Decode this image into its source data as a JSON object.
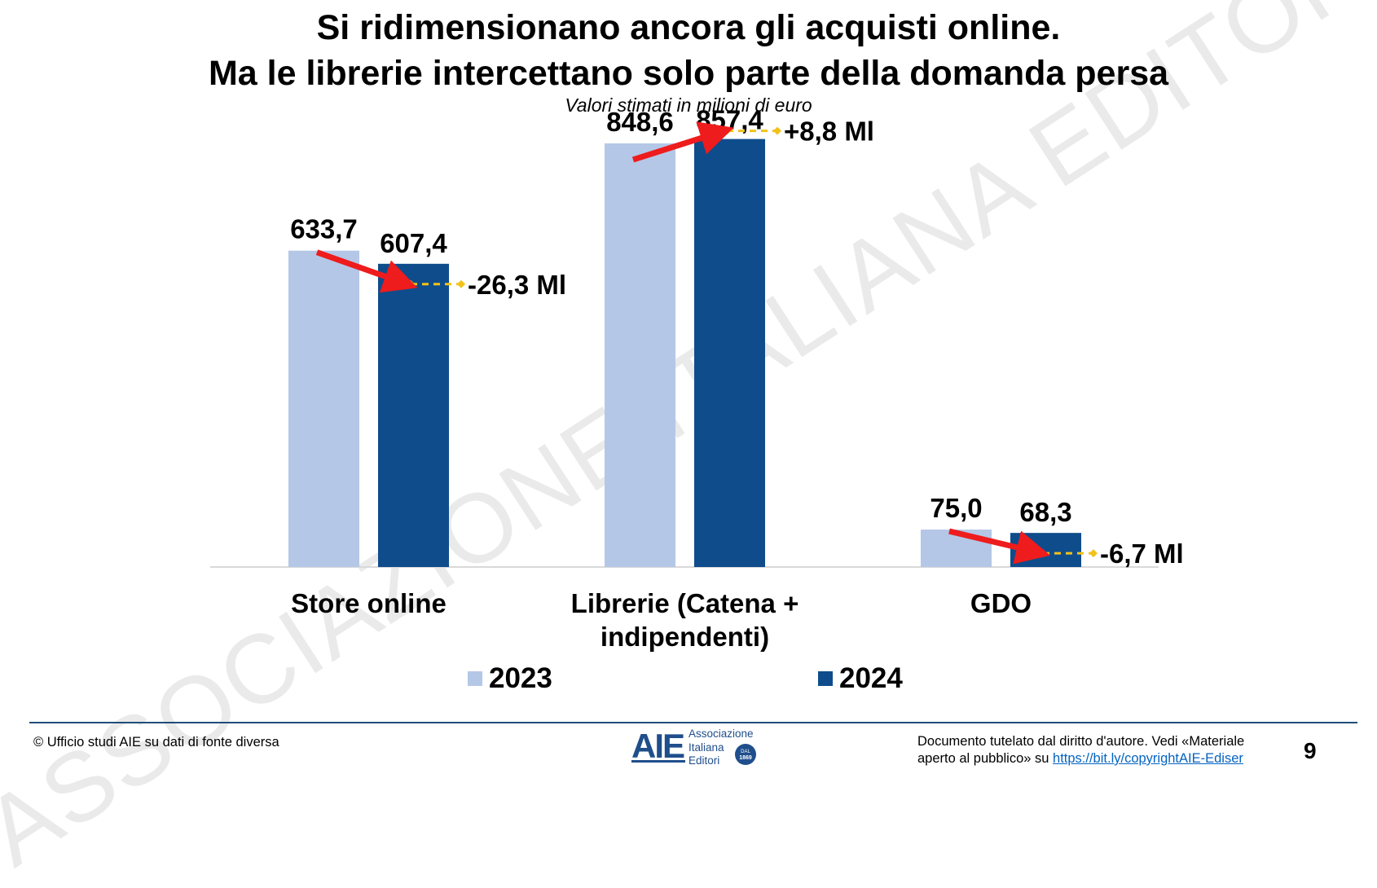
{
  "title_line1": "Si ridimensionano ancora gli acquisti online.",
  "title_line2": "Ma le librerie intercettano solo parte della domanda persa",
  "subtitle": "Valori stimati in milioni di euro",
  "watermark": "ASSOCIAZIONE ITALIANA EDITORI",
  "chart_data": {
    "type": "bar",
    "categories": [
      [
        "Store online"
      ],
      [
        "Librerie (Catena +",
        "indipendenti)"
      ],
      [
        "GDO"
      ]
    ],
    "series": [
      {
        "name": "2023",
        "values": [
          633.7,
          848.6,
          75.0
        ],
        "labels": [
          "633,7",
          "848,6",
          "75,0"
        ],
        "color": "#b4c7e7"
      },
      {
        "name": "2024",
        "values": [
          607.4,
          857.4,
          68.3
        ],
        "labels": [
          "607,4",
          "857,4",
          "68,3"
        ],
        "color": "#0f4c8c"
      }
    ],
    "changes": [
      "-26,3 Ml",
      "+8,8 Ml",
      "-6,7 Ml"
    ],
    "ylim": [
      0,
      940
    ],
    "arrow_color": "#ee1c1c",
    "dash_color": "#f2c218"
  },
  "footer": {
    "source": "© Ufficio studi AIE su dati di fonte diversa",
    "rights_line1": "Documento tutelato dal diritto d'autore. Vedi «Materiale",
    "rights_line2_prefix": "aperto al pubblico» su ",
    "link": "https://bit.ly/copyrightAIE-Ediser",
    "page": "9"
  },
  "logo": {
    "mark": "AIE",
    "line1": "Associazione",
    "line2": "Italiana",
    "line3": "Editori",
    "badge_top": "DAL",
    "badge_bottom": "1869"
  }
}
